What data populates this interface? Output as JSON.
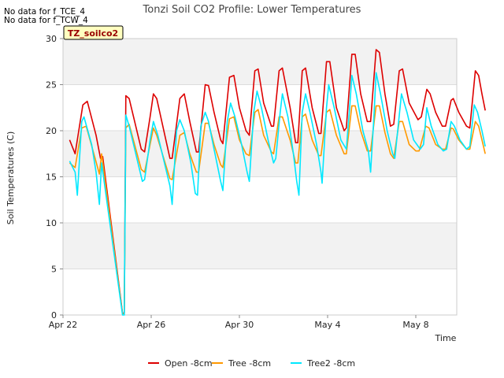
{
  "notes": [
    "No data for f_TCE_4",
    "No data for f_TCW_4"
  ],
  "site_badge": "TZ_soilco2",
  "chart_data": {
    "type": "line",
    "title": "Tonzi Soil CO2 Profile: Lower Temperatures",
    "xlabel": "Time",
    "ylabel": "Soil Temperatures (C)",
    "xlim": [
      0,
      18
    ],
    "ylim": [
      0,
      30
    ],
    "x_ticks": [
      {
        "x": 0,
        "label": "Apr 22"
      },
      {
        "x": 4,
        "label": "Apr 26"
      },
      {
        "x": 8,
        "label": "Apr 30"
      },
      {
        "x": 12,
        "label": "May 4"
      },
      {
        "x": 16,
        "label": "May 8"
      }
    ],
    "y_ticks": [
      0,
      5,
      10,
      15,
      20,
      25,
      30
    ],
    "grid": true,
    "legend_position": "bottom",
    "series": [
      {
        "name": "Open -8cm",
        "color": "#dd0000",
        "points": [
          [
            0.3,
            19.0
          ],
          [
            0.55,
            17.5
          ],
          [
            0.9,
            22.8
          ],
          [
            1.1,
            23.2
          ],
          [
            1.5,
            19.5
          ],
          [
            1.7,
            17.0
          ],
          [
            1.8,
            17.2
          ],
          [
            2.7,
            0.2
          ],
          [
            2.78,
            0.2
          ],
          [
            2.85,
            23.8
          ],
          [
            3.0,
            23.5
          ],
          [
            3.55,
            18.0
          ],
          [
            3.7,
            17.7
          ],
          [
            3.95,
            21.5
          ],
          [
            4.1,
            24.0
          ],
          [
            4.25,
            23.5
          ],
          [
            4.85,
            17.0
          ],
          [
            4.95,
            17.0
          ],
          [
            5.3,
            23.5
          ],
          [
            5.5,
            24.0
          ],
          [
            5.75,
            21.0
          ],
          [
            6.05,
            17.7
          ],
          [
            6.15,
            17.7
          ],
          [
            6.45,
            25.0
          ],
          [
            6.6,
            24.9
          ],
          [
            6.85,
            22.0
          ],
          [
            7.15,
            19.0
          ],
          [
            7.25,
            18.6
          ],
          [
            7.55,
            25.8
          ],
          [
            7.75,
            26.0
          ],
          [
            8.0,
            22.5
          ],
          [
            8.3,
            20.0
          ],
          [
            8.45,
            19.5
          ],
          [
            8.7,
            26.5
          ],
          [
            8.85,
            26.7
          ],
          [
            9.1,
            23.0
          ],
          [
            9.45,
            20.5
          ],
          [
            9.55,
            20.5
          ],
          [
            9.8,
            26.5
          ],
          [
            9.95,
            26.8
          ],
          [
            10.3,
            22.5
          ],
          [
            10.55,
            18.7
          ],
          [
            10.65,
            18.7
          ],
          [
            10.85,
            26.5
          ],
          [
            11.0,
            26.8
          ],
          [
            11.3,
            22.5
          ],
          [
            11.6,
            19.7
          ],
          [
            11.7,
            19.7
          ],
          [
            11.95,
            27.5
          ],
          [
            12.1,
            27.5
          ],
          [
            12.4,
            22.5
          ],
          [
            12.75,
            20.0
          ],
          [
            12.85,
            20.3
          ],
          [
            13.1,
            28.3
          ],
          [
            13.25,
            28.3
          ],
          [
            13.5,
            24.0
          ],
          [
            13.8,
            21.0
          ],
          [
            13.95,
            21.0
          ],
          [
            14.2,
            28.8
          ],
          [
            14.35,
            28.5
          ],
          [
            14.6,
            24.0
          ],
          [
            14.85,
            20.5
          ],
          [
            15.0,
            20.7
          ],
          [
            15.25,
            26.5
          ],
          [
            15.4,
            26.7
          ],
          [
            15.7,
            23.0
          ],
          [
            16.1,
            21.2
          ],
          [
            16.25,
            21.5
          ],
          [
            16.5,
            24.5
          ],
          [
            16.65,
            24.0
          ],
          [
            16.9,
            22.0
          ],
          [
            17.2,
            20.5
          ],
          [
            17.35,
            20.5
          ],
          [
            17.6,
            23.3
          ],
          [
            17.7,
            23.5
          ],
          [
            17.95,
            22.0
          ],
          [
            18.3,
            20.5
          ],
          [
            18.45,
            20.3
          ],
          [
            18.7,
            26.5
          ],
          [
            18.85,
            26.0
          ],
          [
            19.0,
            24.0
          ],
          [
            19.15,
            22.2
          ]
        ]
      },
      {
        "name": "Tree -8cm",
        "color": "#ff9900",
        "points": [
          [
            0.3,
            16.5
          ],
          [
            0.55,
            16.0
          ],
          [
            0.85,
            20.3
          ],
          [
            1.05,
            20.5
          ],
          [
            1.4,
            17.5
          ],
          [
            1.65,
            15.3
          ],
          [
            1.75,
            17.5
          ],
          [
            2.7,
            0.1
          ],
          [
            2.78,
            0.2
          ],
          [
            2.85,
            20.3
          ],
          [
            3.0,
            20.7
          ],
          [
            3.55,
            15.8
          ],
          [
            3.7,
            15.5
          ],
          [
            3.95,
            18.5
          ],
          [
            4.1,
            20.3
          ],
          [
            4.25,
            19.5
          ],
          [
            4.85,
            14.8
          ],
          [
            4.95,
            14.7
          ],
          [
            5.3,
            19.5
          ],
          [
            5.5,
            19.8
          ],
          [
            5.75,
            17.5
          ],
          [
            6.05,
            15.5
          ],
          [
            6.15,
            15.5
          ],
          [
            6.45,
            20.8
          ],
          [
            6.6,
            20.8
          ],
          [
            6.85,
            18.5
          ],
          [
            7.15,
            16.3
          ],
          [
            7.25,
            16.0
          ],
          [
            7.55,
            21.3
          ],
          [
            7.75,
            21.5
          ],
          [
            8.0,
            19.0
          ],
          [
            8.3,
            17.5
          ],
          [
            8.45,
            17.3
          ],
          [
            8.7,
            22.0
          ],
          [
            8.85,
            22.3
          ],
          [
            9.1,
            19.5
          ],
          [
            9.45,
            17.7
          ],
          [
            9.55,
            17.5
          ],
          [
            9.8,
            21.5
          ],
          [
            9.95,
            21.5
          ],
          [
            10.3,
            19.0
          ],
          [
            10.55,
            16.5
          ],
          [
            10.65,
            16.5
          ],
          [
            10.85,
            21.5
          ],
          [
            11.0,
            21.8
          ],
          [
            11.3,
            19.0
          ],
          [
            11.6,
            17.3
          ],
          [
            11.7,
            17.3
          ],
          [
            11.95,
            22.0
          ],
          [
            12.1,
            22.3
          ],
          [
            12.4,
            19.5
          ],
          [
            12.75,
            17.5
          ],
          [
            12.85,
            17.5
          ],
          [
            13.1,
            22.7
          ],
          [
            13.25,
            22.7
          ],
          [
            13.5,
            20.0
          ],
          [
            13.8,
            17.8
          ],
          [
            13.95,
            17.8
          ],
          [
            14.2,
            22.7
          ],
          [
            14.35,
            22.7
          ],
          [
            14.6,
            19.8
          ],
          [
            14.85,
            17.5
          ],
          [
            15.0,
            17.0
          ],
          [
            15.25,
            21.0
          ],
          [
            15.4,
            21.0
          ],
          [
            15.7,
            18.5
          ],
          [
            16.0,
            17.8
          ],
          [
            16.15,
            17.8
          ],
          [
            16.45,
            20.5
          ],
          [
            16.6,
            20.3
          ],
          [
            16.9,
            18.5
          ],
          [
            17.2,
            18.0
          ],
          [
            17.35,
            18.0
          ],
          [
            17.6,
            20.3
          ],
          [
            17.7,
            20.2
          ],
          [
            17.95,
            19.0
          ],
          [
            18.3,
            18.0
          ],
          [
            18.45,
            18.0
          ],
          [
            18.7,
            21.0
          ],
          [
            18.85,
            20.5
          ],
          [
            19.0,
            19.0
          ],
          [
            19.15,
            17.5
          ]
        ]
      },
      {
        "name": "Tree2 -8cm",
        "color": "#00e8ff",
        "points": [
          [
            0.3,
            16.7
          ],
          [
            0.55,
            15.5
          ],
          [
            0.65,
            13.0
          ],
          [
            0.85,
            21.0
          ],
          [
            0.95,
            21.5
          ],
          [
            1.3,
            18.5
          ],
          [
            1.5,
            15.5
          ],
          [
            1.65,
            12.0
          ],
          [
            1.75,
            16.5
          ],
          [
            2.7,
            0.0
          ],
          [
            2.78,
            0.0
          ],
          [
            2.85,
            21.7
          ],
          [
            3.0,
            20.5
          ],
          [
            3.45,
            16.0
          ],
          [
            3.6,
            14.5
          ],
          [
            3.7,
            14.7
          ],
          [
            3.95,
            19.0
          ],
          [
            4.1,
            21.0
          ],
          [
            4.3,
            19.5
          ],
          [
            4.85,
            14.0
          ],
          [
            4.95,
            12.0
          ],
          [
            5.15,
            20.0
          ],
          [
            5.3,
            21.2
          ],
          [
            5.5,
            20.0
          ],
          [
            5.8,
            16.5
          ],
          [
            6.0,
            13.2
          ],
          [
            6.1,
            13.0
          ],
          [
            6.25,
            20.5
          ],
          [
            6.45,
            22.0
          ],
          [
            6.6,
            21.0
          ],
          [
            6.85,
            18.0
          ],
          [
            7.15,
            14.5
          ],
          [
            7.25,
            13.5
          ],
          [
            7.45,
            21.0
          ],
          [
            7.6,
            23.0
          ],
          [
            7.8,
            21.5
          ],
          [
            8.1,
            18.5
          ],
          [
            8.35,
            15.5
          ],
          [
            8.45,
            14.5
          ],
          [
            8.65,
            22.0
          ],
          [
            8.8,
            24.3
          ],
          [
            9.0,
            22.5
          ],
          [
            9.3,
            19.0
          ],
          [
            9.55,
            16.5
          ],
          [
            9.65,
            17.0
          ],
          [
            9.85,
            22.0
          ],
          [
            9.95,
            24.0
          ],
          [
            10.2,
            21.5
          ],
          [
            10.45,
            17.5
          ],
          [
            10.6,
            14.5
          ],
          [
            10.7,
            13.0
          ],
          [
            10.85,
            22.0
          ],
          [
            11.0,
            24.0
          ],
          [
            11.2,
            22.0
          ],
          [
            11.5,
            18.5
          ],
          [
            11.7,
            15.5
          ],
          [
            11.75,
            14.3
          ],
          [
            11.95,
            22.5
          ],
          [
            12.05,
            25.0
          ],
          [
            12.3,
            22.5
          ],
          [
            12.6,
            19.0
          ],
          [
            12.85,
            18.0
          ],
          [
            13.0,
            22.5
          ],
          [
            13.1,
            26.0
          ],
          [
            13.3,
            24.0
          ],
          [
            13.6,
            20.0
          ],
          [
            13.85,
            17.8
          ],
          [
            13.95,
            15.5
          ],
          [
            14.1,
            21.5
          ],
          [
            14.2,
            26.3
          ],
          [
            14.4,
            24.0
          ],
          [
            14.7,
            20.0
          ],
          [
            14.95,
            17.5
          ],
          [
            15.05,
            17.0
          ],
          [
            15.2,
            20.5
          ],
          [
            15.35,
            24.0
          ],
          [
            15.6,
            22.0
          ],
          [
            15.9,
            19.0
          ],
          [
            16.2,
            18.0
          ],
          [
            16.35,
            18.5
          ],
          [
            16.5,
            22.5
          ],
          [
            16.7,
            20.5
          ],
          [
            17.0,
            18.5
          ],
          [
            17.25,
            17.8
          ],
          [
            17.4,
            18.0
          ],
          [
            17.6,
            21.0
          ],
          [
            17.75,
            20.5
          ],
          [
            18.0,
            19.0
          ],
          [
            18.3,
            18.0
          ],
          [
            18.45,
            18.3
          ],
          [
            18.65,
            22.8
          ],
          [
            18.8,
            22.0
          ],
          [
            19.0,
            20.0
          ],
          [
            19.15,
            18.3
          ]
        ]
      }
    ]
  }
}
